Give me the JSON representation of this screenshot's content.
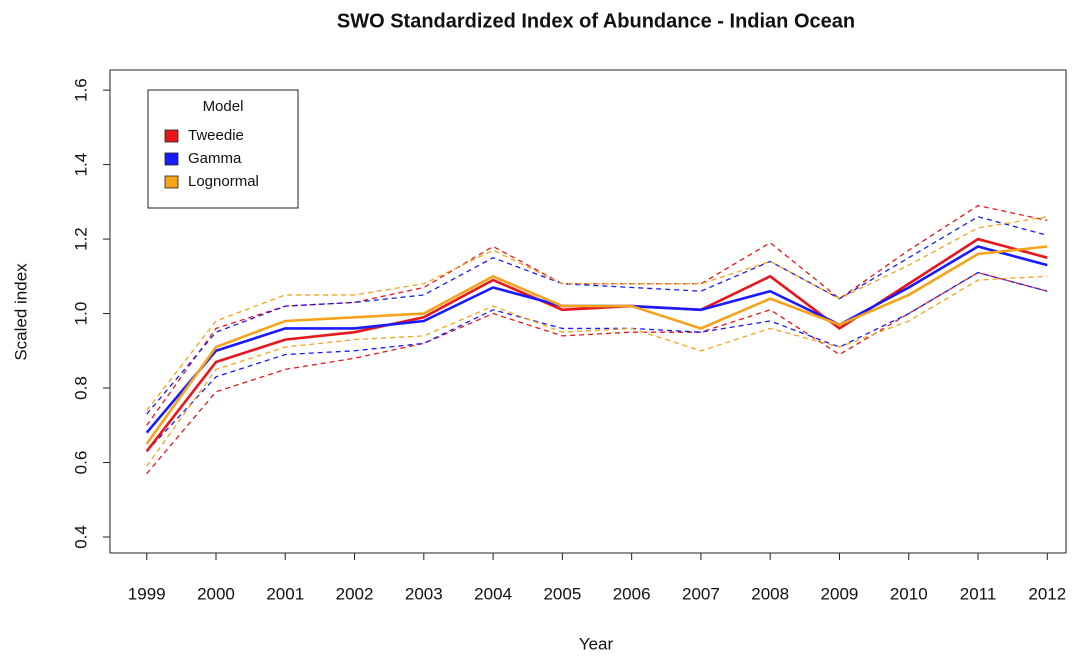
{
  "chart_data": {
    "type": "line",
    "title": "SWO Standardized Index of Abundance - Indian Ocean",
    "xlabel": "Year",
    "ylabel": "Scaled index",
    "x": [
      1999,
      2000,
      2001,
      2002,
      2003,
      2004,
      2005,
      2006,
      2007,
      2008,
      2009,
      2010,
      2011,
      2012
    ],
    "xlim": [
      1998.47,
      2012.27
    ],
    "xticks": [
      1999,
      2000,
      2001,
      2002,
      2003,
      2004,
      2005,
      2006,
      2007,
      2008,
      2009,
      2010,
      2011,
      2012
    ],
    "ylim": [
      0.357,
      1.654
    ],
    "yticks": [
      0.4,
      0.6,
      0.8,
      {
        "value": 1,
        "label": "1.0"
      },
      1.2,
      1.4,
      1.6
    ],
    "legend_title": "Model",
    "legend_position": "top-left",
    "series": [
      {
        "name": "Tweedie",
        "color": "#e8161b",
        "values": [
          0.63,
          0.87,
          0.93,
          0.95,
          0.99,
          1.09,
          1.01,
          1.02,
          1.01,
          1.1,
          0.96,
          1.08,
          1.2,
          1.15
        ],
        "upper": [
          0.7,
          0.96,
          1.02,
          1.03,
          1.07,
          1.18,
          1.08,
          1.08,
          1.08,
          1.19,
          1.04,
          1.17,
          1.29,
          1.25
        ],
        "lower": [
          0.57,
          0.79,
          0.85,
          0.88,
          0.92,
          1.0,
          0.94,
          0.95,
          0.95,
          1.01,
          0.89,
          1.0,
          1.11,
          1.06
        ]
      },
      {
        "name": "Gamma",
        "color": "#1a1aff",
        "values": [
          0.68,
          0.9,
          0.96,
          0.96,
          0.98,
          1.07,
          1.02,
          1.02,
          1.01,
          1.06,
          0.97,
          1.07,
          1.18,
          1.13
        ],
        "upper": [
          0.73,
          0.95,
          1.02,
          1.03,
          1.05,
          1.15,
          1.08,
          1.07,
          1.06,
          1.14,
          1.04,
          1.15,
          1.26,
          1.21
        ],
        "lower": [
          0.63,
          0.83,
          0.89,
          0.9,
          0.92,
          1.01,
          0.96,
          0.96,
          0.95,
          0.98,
          0.91,
          1.0,
          1.11,
          1.06
        ]
      },
      {
        "name": "Lognormal",
        "color": "#f5a31a",
        "values": [
          0.65,
          0.91,
          0.98,
          0.99,
          1.0,
          1.1,
          1.02,
          1.02,
          0.96,
          1.04,
          0.97,
          1.05,
          1.16,
          1.18
        ],
        "upper": [
          0.74,
          0.98,
          1.05,
          1.05,
          1.08,
          1.17,
          1.08,
          1.08,
          1.08,
          1.14,
          1.04,
          1.13,
          1.23,
          1.26
        ],
        "lower": [
          0.59,
          0.85,
          0.91,
          0.93,
          0.94,
          1.02,
          0.95,
          0.96,
          0.9,
          0.96,
          0.91,
          0.98,
          1.09,
          1.1
        ]
      }
    ]
  }
}
